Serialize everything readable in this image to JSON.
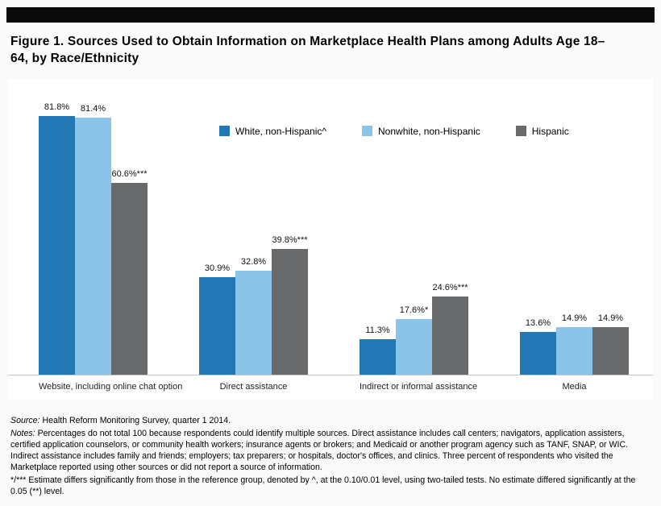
{
  "figure": {
    "title": "Figure 1. Sources Used to Obtain Information on Marketplace Health Plans among Adults Age 18–64, by Race/Ethnicity"
  },
  "chart_data": {
    "type": "bar",
    "title": "Figure 1. Sources Used to Obtain Information on Marketplace Health Plans among Adults Age 18–64, by Race/Ethnicity",
    "categories": [
      "Website, including online chat option",
      "Direct assistance",
      "Indirect or informal assistance",
      "Media"
    ],
    "series": [
      {
        "name": "White, non-Hispanic^",
        "color": "#2277b4",
        "values": [
          81.8,
          30.9,
          11.3,
          13.6
        ],
        "labels": [
          "81.8%",
          "30.9%",
          "11.3%",
          "13.6%"
        ]
      },
      {
        "name": "Nonwhite, non-Hispanic",
        "color": "#8cc4e9",
        "values": [
          81.4,
          32.8,
          17.6,
          14.9
        ],
        "labels": [
          "81.4%",
          "32.8%",
          "17.6%*",
          "14.9%"
        ]
      },
      {
        "name": "Hispanic",
        "color": "#67696b",
        "values": [
          60.6,
          39.8,
          24.6,
          14.9
        ],
        "labels": [
          "60.6%***",
          "39.8%***",
          "24.6%***",
          "14.9%"
        ]
      }
    ],
    "xlabel": "",
    "ylabel": "",
    "ylim": [
      0,
      88
    ],
    "grid": false,
    "legend_position": "top-center",
    "value_labels_shown": true,
    "axis_color": "#c5c5c5"
  },
  "footnotes": {
    "source_label": "Source:",
    "source_text": " Health Reform Monitoring Survey, quarter 1 2014.",
    "notes_label": "Notes:",
    "notes_text": " Percentages do not total 100 because respondents could identify multiple sources. Direct assistance includes call centers; navigators, application assisters, certified application counselors, or community health workers; insurance agents or brokers; and Medicaid or another program agency such as TANF, SNAP, or WIC. Indirect assistance includes family and friends; employers; tax preparers; or hospitals, doctor's offices, and clinics. Three percent of respondents who visited the Marketplace reported using other sources or did not report a source of information.",
    "significance_text": "*/*** Estimate differs significantly from those in the reference group, denoted by ^, at the 0.10/0.01 level, using two-tailed tests. No estimate differed significantly at the 0.05 (**) level."
  }
}
